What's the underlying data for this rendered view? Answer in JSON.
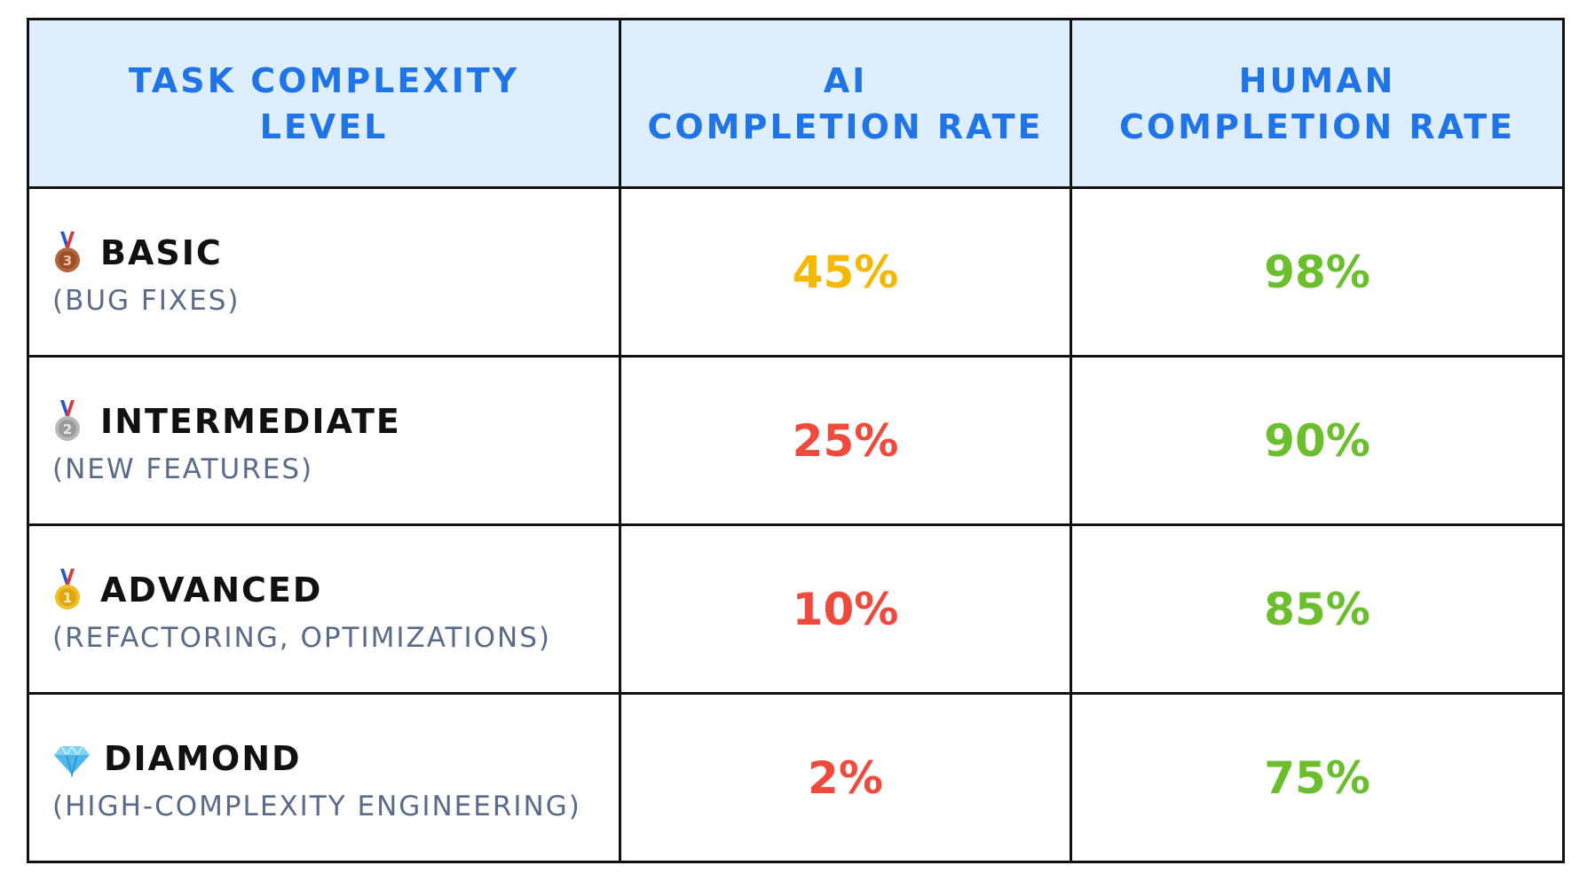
{
  "header": {
    "col1_line1": "TASK COMPLEXITY",
    "col1_line2": "LEVEL",
    "col2_line1": "AI",
    "col2_line2": "COMPLETION RATE",
    "col3_line1": "HUMAN",
    "col3_line2": "COMPLETION RATE"
  },
  "rows": [
    {
      "icon": "bronze-medal-icon",
      "level": "BASIC",
      "description": "(BUG FIXES)",
      "ai_rate": "45%",
      "ai_color": "#f5b800",
      "human_rate": "98%",
      "human_color": "#6cbf2c"
    },
    {
      "icon": "silver-medal-icon",
      "level": "INTERMEDIATE",
      "description": "(NEW FEATURES)",
      "ai_rate": "25%",
      "ai_color": "#ef4a3c",
      "human_rate": "90%",
      "human_color": "#6cbf2c"
    },
    {
      "icon": "gold-medal-icon",
      "level": "ADVANCED",
      "description": "(REFACTORING, OPTIMIZATIONS)",
      "ai_rate": "10%",
      "ai_color": "#ef4a3c",
      "human_rate": "85%",
      "human_color": "#6cbf2c"
    },
    {
      "icon": "diamond-icon",
      "level": "DIAMOND",
      "description": "(HIGH-COMPLEXITY ENGINEERING)",
      "ai_rate": "2%",
      "ai_color": "#ef4a3c",
      "human_rate": "75%",
      "human_color": "#6cbf2c"
    }
  ],
  "colors": {
    "header_bg": "#deeefc",
    "header_text": "#1f74e8",
    "description_text": "#5a6b8a"
  }
}
